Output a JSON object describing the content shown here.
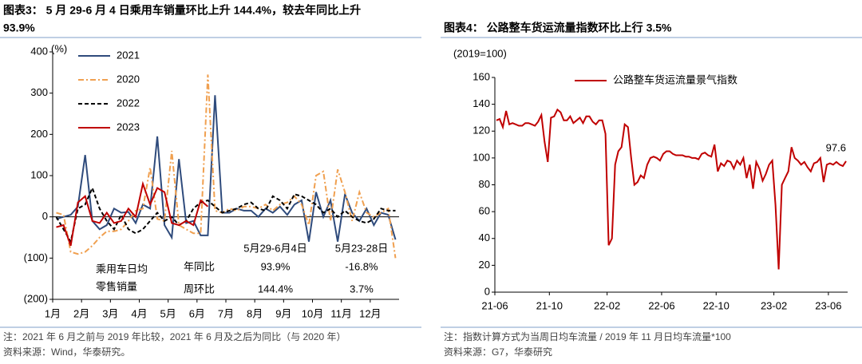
{
  "chart_data": [
    {
      "type": "line",
      "title": [
        "图表3： 5 月 29-6 月 4 日乘用车销量环比上升 144.4%，较去年同比上升",
        "93.9%"
      ],
      "y_unit": "(%)",
      "categories": [
        "1月",
        null,
        null,
        null,
        "2月",
        null,
        null,
        null,
        "3月",
        null,
        null,
        null,
        "4月",
        null,
        null,
        null,
        "5月",
        null,
        null,
        null,
        "6月",
        null,
        null,
        null,
        "7月",
        null,
        null,
        null,
        "8月",
        null,
        null,
        null,
        "9月",
        null,
        null,
        null,
        "10月",
        null,
        null,
        null,
        "11月",
        null,
        null,
        null,
        "12月",
        null,
        null,
        null
      ],
      "series": [
        {
          "name": "2021",
          "color": "#2f4b7c",
          "dash": "solid",
          "values": [
            -5,
            0,
            5,
            25,
            150,
            -10,
            -30,
            -20,
            20,
            10,
            12,
            -15,
            30,
            20,
            195,
            -20,
            -50,
            140,
            -15,
            -10,
            -45,
            -45,
            295,
            10,
            10,
            20,
            15,
            15,
            0,
            20,
            10,
            25,
            5,
            30,
            40,
            -60,
            60,
            0,
            40,
            -60,
            55,
            10,
            -10,
            20,
            -20,
            10,
            5,
            -55
          ]
        },
        {
          "name": "2020",
          "color": "#f0a050",
          "dash": "dashdot",
          "values": [
            10,
            5,
            -85,
            -90,
            -85,
            -70,
            -50,
            -35,
            -35,
            -30,
            -10,
            15,
            20,
            120,
            -5,
            -10,
            160,
            -20,
            -30,
            -40,
            -40,
            345,
            15,
            10,
            20,
            15,
            25,
            25,
            20,
            30,
            15,
            30,
            35,
            50,
            30,
            -20,
            100,
            110,
            -10,
            115,
            60,
            -10,
            60,
            10,
            0,
            10,
            20,
            -100
          ]
        },
        {
          "name": "2022",
          "color": "#000000",
          "dash": "dashed",
          "values": [
            0,
            -30,
            -60,
            20,
            30,
            70,
            20,
            -10,
            -30,
            5,
            -30,
            -40,
            -30,
            -10,
            10,
            -10,
            0,
            -20,
            -10,
            20,
            35,
            40,
            25,
            10,
            15,
            20,
            30,
            35,
            20,
            15,
            50,
            40,
            20,
            55,
            50,
            40,
            30,
            10,
            20,
            0,
            15,
            0,
            -10,
            -15,
            -5,
            20,
            15,
            15
          ]
        },
        {
          "name": "2023",
          "color": "#c00000",
          "dash": "solid",
          "values": [
            -25,
            -20,
            -70,
            35,
            50,
            -10,
            -15,
            10,
            -15,
            -10,
            20,
            0,
            80,
            30,
            70,
            60,
            -15,
            -20,
            -10,
            -20,
            40,
            25,
            null,
            null,
            null,
            null,
            null,
            null,
            null,
            null,
            null,
            null,
            null,
            null,
            null,
            null,
            null,
            null,
            null,
            null,
            null,
            null,
            null,
            null,
            null,
            null,
            null,
            null
          ]
        }
      ],
      "ylim": [
        -200,
        400
      ],
      "yticks": [
        {
          "value": -200,
          "label": "(200)"
        },
        {
          "value": -100,
          "label": "(100)"
        },
        0,
        100,
        200,
        300,
        400
      ],
      "grid": false,
      "legend": "upper-left",
      "annotation_table": {
        "header": [
          "5月29-6月4日",
          "5月23-28日"
        ],
        "row_label": [
          "乘用车日均",
          "零售销量"
        ],
        "rows": [
          {
            "label": "年同比",
            "values": [
              "93.9%",
              "-16.8%"
            ]
          },
          {
            "label": "周环比",
            "values": [
              "144.4%",
              "3.7%"
            ]
          }
        ]
      },
      "notes": [
        "注：2021 年 6 月之前与 2019 年比较，2021 年 6 月及之后为同比（与 2020 年）",
        "资料来源：Wind，华泰研究。"
      ]
    },
    {
      "type": "line",
      "title": [
        "图表4： 公路整车货运流量指数环比上行 3.5%"
      ],
      "y_unit": "(2019=100)",
      "categories": [
        "21-06",
        null,
        null,
        null,
        null,
        null,
        null,
        null,
        null,
        null,
        null,
        null,
        null,
        null,
        null,
        null,
        null,
        "21-10",
        null,
        null,
        null,
        null,
        null,
        null,
        null,
        null,
        null,
        null,
        null,
        null,
        null,
        null,
        null,
        null,
        null,
        "22-02",
        null,
        null,
        null,
        null,
        null,
        null,
        null,
        null,
        null,
        null,
        null,
        null,
        null,
        null,
        null,
        null,
        "22-06",
        null,
        null,
        null,
        null,
        null,
        null,
        null,
        null,
        null,
        null,
        null,
        null,
        null,
        null,
        null,
        null,
        "22-10",
        null,
        null,
        null,
        null,
        null,
        null,
        null,
        null,
        null,
        null,
        null,
        null,
        null,
        null,
        null,
        null,
        null,
        "23-02",
        null,
        null,
        null,
        null,
        null,
        null,
        null,
        null,
        null,
        null,
        null,
        null,
        null,
        null,
        null,
        null,
        "23-06",
        null,
        null,
        null,
        null,
        null
      ],
      "series": [
        {
          "name": "公路整车货运流量景气指数",
          "color": "#c00000",
          "dash": "solid",
          "values": [
            128,
            129,
            123,
            135,
            125,
            126,
            125,
            124,
            124,
            126,
            126,
            125,
            124,
            127,
            132,
            112,
            97,
            130,
            131,
            136,
            134,
            128,
            128,
            131,
            126,
            128,
            130,
            126,
            131,
            131,
            127,
            125,
            128,
            128,
            118,
            35,
            40,
            95,
            105,
            108,
            125,
            123,
            100,
            80,
            82,
            87,
            85,
            95,
            100,
            101,
            100,
            98,
            103,
            105,
            105,
            103,
            102,
            102,
            102,
            101,
            101,
            100,
            100,
            99,
            103,
            104,
            102,
            101,
            110,
            90,
            96,
            94,
            98,
            97,
            92,
            98,
            95,
            100,
            85,
            95,
            77,
            97,
            92,
            83,
            88,
            95,
            98,
            65,
            17,
            80,
            85,
            90,
            108,
            100,
            98,
            95,
            97,
            93,
            90,
            96,
            97,
            100,
            82,
            95,
            96,
            95,
            97,
            95,
            94,
            97.6
          ]
        }
      ],
      "ylim": [
        0,
        160
      ],
      "yticks": [
        0,
        20,
        40,
        60,
        80,
        100,
        120,
        140,
        160
      ],
      "grid": false,
      "legend": "upper-center",
      "annotation": "97.6",
      "notes": [
        "注：指数计算方式为当周日均车流量 / 2019 年 11 月日均车流量*100",
        "资料来源：G7，华泰研究"
      ]
    }
  ]
}
